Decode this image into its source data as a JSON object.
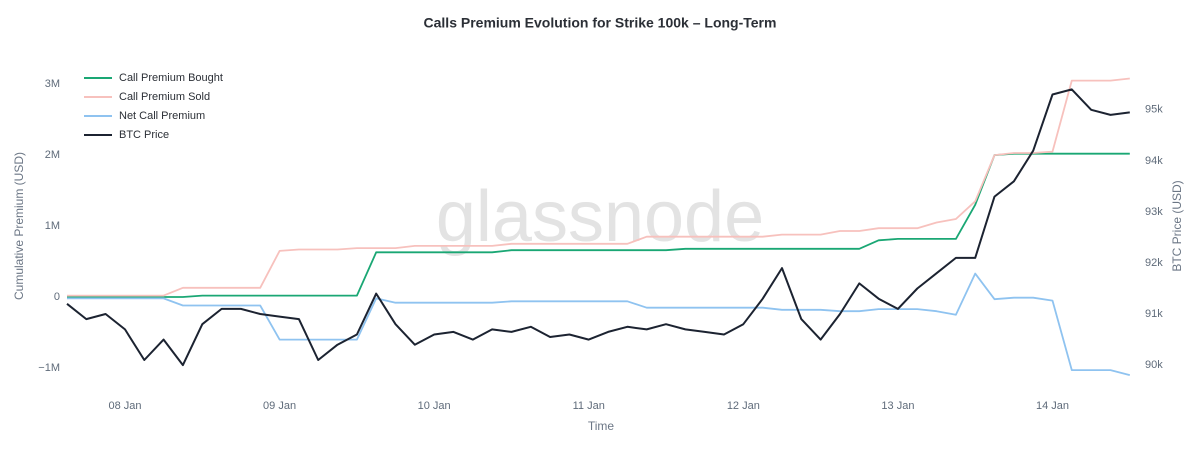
{
  "chart_data": {
    "type": "line",
    "title": "Calls Premium Evolution for Strike 100k – Long-Term",
    "watermark": "glassnode",
    "x_label": "Time",
    "y_label": "Cumulative Premium (USD)",
    "y2_label": "BTC Price (USD)",
    "x": [
      7.625,
      7.75,
      7.875,
      8.0,
      8.125,
      8.25,
      8.375,
      8.5,
      8.625,
      8.75,
      8.875,
      9.0,
      9.125,
      9.25,
      9.375,
      9.5,
      9.625,
      9.75,
      9.875,
      10.0,
      10.125,
      10.25,
      10.375,
      10.5,
      10.625,
      10.75,
      10.875,
      11.0,
      11.125,
      11.25,
      11.375,
      11.5,
      11.625,
      11.75,
      11.875,
      12.0,
      12.125,
      12.25,
      12.375,
      12.5,
      12.625,
      12.75,
      12.875,
      13.0,
      13.125,
      13.25,
      13.375,
      13.5,
      13.625,
      13.75,
      13.875,
      14.0,
      14.125,
      14.25,
      14.375,
      14.5
    ],
    "xlim": [
      7.625,
      14.54
    ],
    "xticks": [
      {
        "value": 8,
        "label": "08 Jan"
      },
      {
        "value": 9,
        "label": "09 Jan"
      },
      {
        "value": 10,
        "label": "10 Jan"
      },
      {
        "value": 11,
        "label": "11 Jan"
      },
      {
        "value": 12,
        "label": "12 Jan"
      },
      {
        "value": 13,
        "label": "13 Jan"
      },
      {
        "value": 14,
        "label": "14 Jan"
      }
    ],
    "ylim": [
      -1240000,
      3200000
    ],
    "yticks": [
      {
        "value": -1000000,
        "label": "−1M"
      },
      0,
      {
        "value": 1000000,
        "label": "1M"
      },
      {
        "value": 2000000,
        "label": "2M"
      },
      {
        "value": 3000000,
        "label": "3M"
      }
    ],
    "y2lim": [
      89610,
      95780
    ],
    "y2ticks": [
      {
        "value": 90000,
        "label": "90k"
      },
      {
        "value": 91000,
        "label": "91k"
      },
      {
        "value": 92000,
        "label": "92k"
      },
      {
        "value": 93000,
        "label": "93k"
      },
      {
        "value": 94000,
        "label": "94k"
      },
      {
        "value": 95000,
        "label": "95k"
      }
    ],
    "grid": false,
    "legend": "top-left",
    "series": [
      {
        "name": "Call Premium Bought",
        "color": "#1aa774",
        "values": [
          0,
          0,
          0,
          0,
          0,
          0,
          0,
          20000,
          20000,
          20000,
          20000,
          20000,
          20000,
          20000,
          20000,
          20000,
          630000,
          630000,
          630000,
          630000,
          630000,
          630000,
          630000,
          660000,
          660000,
          660000,
          660000,
          660000,
          660000,
          660000,
          660000,
          660000,
          680000,
          680000,
          680000,
          680000,
          680000,
          680000,
          680000,
          680000,
          680000,
          680000,
          800000,
          820000,
          820000,
          820000,
          820000,
          1300000,
          2000000,
          2020000,
          2020000,
          2020000,
          2020000,
          2020000,
          2020000,
          2020000
        ]
      },
      {
        "name": "Call Premium Sold",
        "color": "#f7c1bd",
        "values": [
          20000,
          20000,
          20000,
          20000,
          20000,
          20000,
          130000,
          130000,
          130000,
          130000,
          130000,
          650000,
          670000,
          670000,
          670000,
          690000,
          690000,
          690000,
          720000,
          720000,
          720000,
          720000,
          720000,
          750000,
          750000,
          750000,
          750000,
          750000,
          750000,
          750000,
          850000,
          850000,
          850000,
          850000,
          850000,
          850000,
          850000,
          880000,
          880000,
          880000,
          930000,
          930000,
          970000,
          970000,
          970000,
          1050000,
          1100000,
          1350000,
          2000000,
          2030000,
          2030000,
          2050000,
          3050000,
          3050000,
          3050000,
          3080000
        ]
      },
      {
        "name": "Net Call Premium",
        "color": "#8fc3f0",
        "values": [
          -20000,
          -20000,
          -20000,
          -20000,
          -20000,
          -20000,
          -120000,
          -120000,
          -120000,
          -120000,
          -120000,
          -600000,
          -600000,
          -600000,
          -600000,
          -600000,
          -20000,
          -80000,
          -80000,
          -80000,
          -80000,
          -80000,
          -80000,
          -60000,
          -60000,
          -60000,
          -60000,
          -60000,
          -60000,
          -60000,
          -150000,
          -150000,
          -150000,
          -150000,
          -150000,
          -150000,
          -150000,
          -180000,
          -180000,
          -180000,
          -200000,
          -200000,
          -170000,
          -170000,
          -170000,
          -200000,
          -250000,
          330000,
          -30000,
          -10000,
          -10000,
          -50000,
          -1030000,
          -1030000,
          -1030000,
          -1100000
        ]
      },
      {
        "name": "BTC Price",
        "color": "#1c2331",
        "axis": "y2",
        "values": [
          91200,
          90900,
          91000,
          90700,
          90100,
          90500,
          90000,
          90800,
          91100,
          91100,
          91000,
          90950,
          90900,
          90100,
          90400,
          90600,
          91400,
          90800,
          90400,
          90600,
          90650,
          90500,
          90700,
          90650,
          90750,
          90550,
          90600,
          90500,
          90650,
          90750,
          90700,
          90800,
          90700,
          90650,
          90600,
          90800,
          91300,
          91900,
          90900,
          90500,
          91000,
          91600,
          91300,
          91100,
          91500,
          91800,
          92100,
          92100,
          93300,
          93600,
          94200,
          95300,
          95400,
          95000,
          94900,
          94950
        ]
      }
    ]
  }
}
